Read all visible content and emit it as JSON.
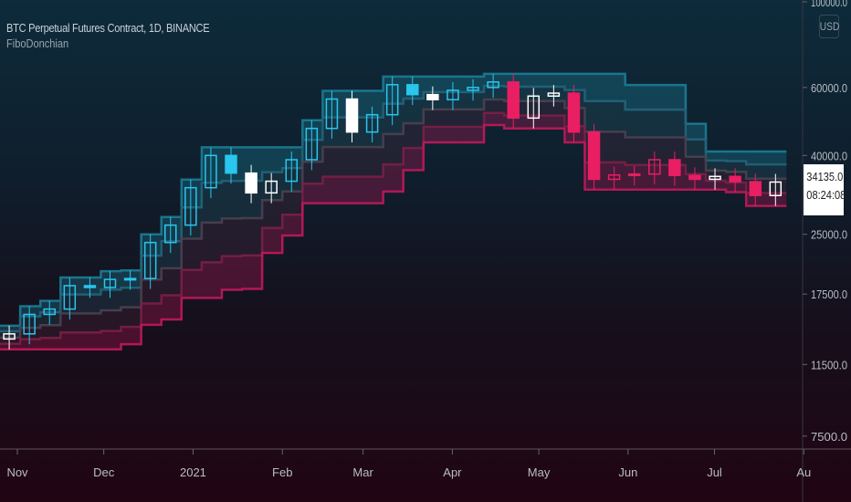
{
  "header": {
    "symbol_title": "BTC Perpetual Futures Contract, 1D, BINANCE",
    "indicator": "FiboDonchian",
    "currency": "USD"
  },
  "price_label": {
    "price": "34135.0",
    "countdown": "08:24:08"
  },
  "chart_data": {
    "type": "candlestick",
    "yscale": "log",
    "ylim": [
      7000,
      100000
    ],
    "yticks": [
      "100000.0",
      "60000.0",
      "40000.0",
      "25000.0",
      "17500.0",
      "11500.0",
      "7500.0"
    ],
    "ytick_values": [
      100000,
      60000,
      40000,
      25000,
      17500,
      11500,
      7500
    ],
    "xticks": [
      "Nov",
      "Dec",
      "2021",
      "Feb",
      "Mar",
      "Apr",
      "May",
      "Jun",
      "Jul",
      "Au"
    ],
    "xtick_dates": [
      "2020-11-01",
      "2020-12-01",
      "2021-01-01",
      "2021-02-01",
      "2021-03-01",
      "2021-04-01",
      "2021-05-01",
      "2021-06-01",
      "2021-07-01",
      "2021-08-01"
    ],
    "colors": {
      "bull": "#29c6ee",
      "neutral": "#ffffff",
      "bear": "#e91e63",
      "upper_band": "#1b7d96",
      "lower_band": "#c2185b"
    },
    "series_dates_start": "2020-10-26",
    "interval": "1W",
    "closes": [
      13800,
      15500,
      16000,
      18400,
      18200,
      19100,
      19200,
      23800,
      26400,
      33000,
      40000,
      36000,
      32000,
      34300,
      39000,
      47000,
      56000,
      46000,
      51000,
      61000,
      57500,
      55800,
      59000,
      60000,
      62000,
      50000,
      57000,
      58000,
      46000,
      34700,
      35600,
      35800,
      39000,
      35500,
      34700,
      35300,
      34200,
      31500,
      34135
    ]
  }
}
